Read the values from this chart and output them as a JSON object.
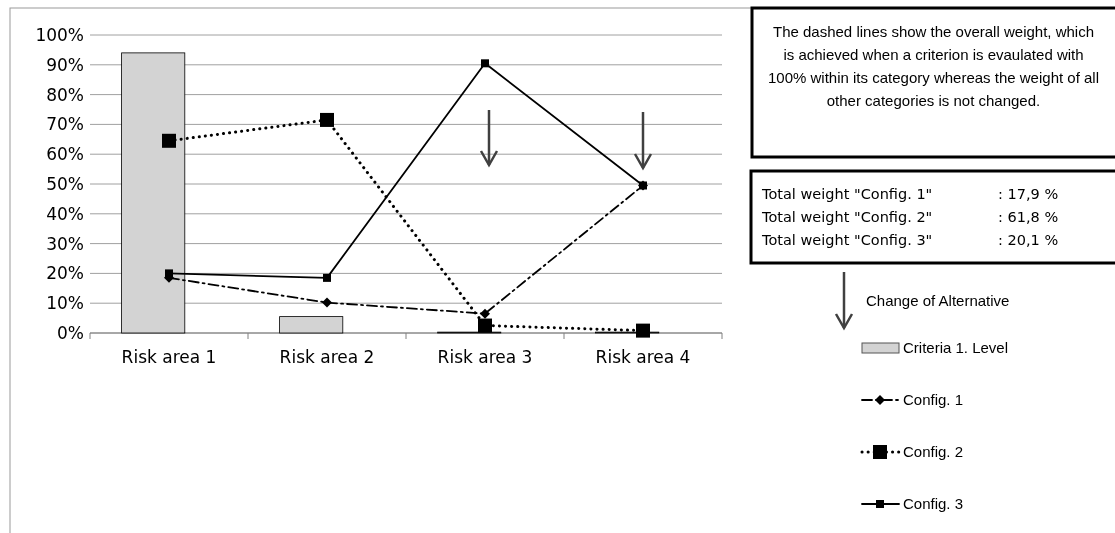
{
  "chart_data": {
    "type": "bar",
    "categories": [
      "Risk area 1",
      "Risk area 2",
      "Risk area 3",
      "Risk area 4"
    ],
    "series": [
      {
        "name": "Criteria 1. Level",
        "color": "#d3d3d3",
        "values": [
          94,
          5.5,
          0.3,
          0.3
        ]
      },
      {
        "name": "Config. 1",
        "type": "line",
        "color": "#000000",
        "line_style": "dashed",
        "marker": "diamond",
        "values": [
          18.5,
          10.2,
          6.5,
          49.5
        ]
      },
      {
        "name": "Config. 2",
        "type": "line",
        "color": "#000000",
        "line_style": "dotted",
        "marker": "square",
        "values": [
          64.5,
          71.5,
          2.5,
          0.8
        ]
      },
      {
        "name": "Config. 3",
        "type": "line",
        "color": "#000000",
        "line_style": "solid",
        "marker": "square",
        "values": [
          20,
          18.5,
          90.5,
          49.5
        ]
      }
    ],
    "ylim": [
      0,
      100
    ],
    "yticks": [
      {
        "value": 0,
        "label": "0%"
      },
      {
        "value": 10,
        "label": "10%"
      },
      {
        "value": 20,
        "label": "20%"
      },
      {
        "value": 30,
        "label": "30%"
      },
      {
        "value": 40,
        "label": "40%"
      },
      {
        "value": 50,
        "label": "50%"
      },
      {
        "value": 60,
        "label": "60%"
      },
      {
        "value": 70,
        "label": "70%"
      },
      {
        "value": 80,
        "label": "80%"
      },
      {
        "value": 90,
        "label": "90%"
      },
      {
        "value": 100,
        "label": "100%"
      }
    ],
    "grid": "y",
    "legend": "right",
    "annotations": [
      "The dashed lines show the overall weight, which is achieved when a criterion is evaulated with 100% within its category whereas the weight of all other categories is not changed.",
      "Total weight \"Config. 1\" : 17,9 %",
      "Total weight \"Config. 2\" : 61,8 %",
      "Total weight \"Config. 3\" : 20,1 %",
      "Change of Alternative"
    ]
  }
}
